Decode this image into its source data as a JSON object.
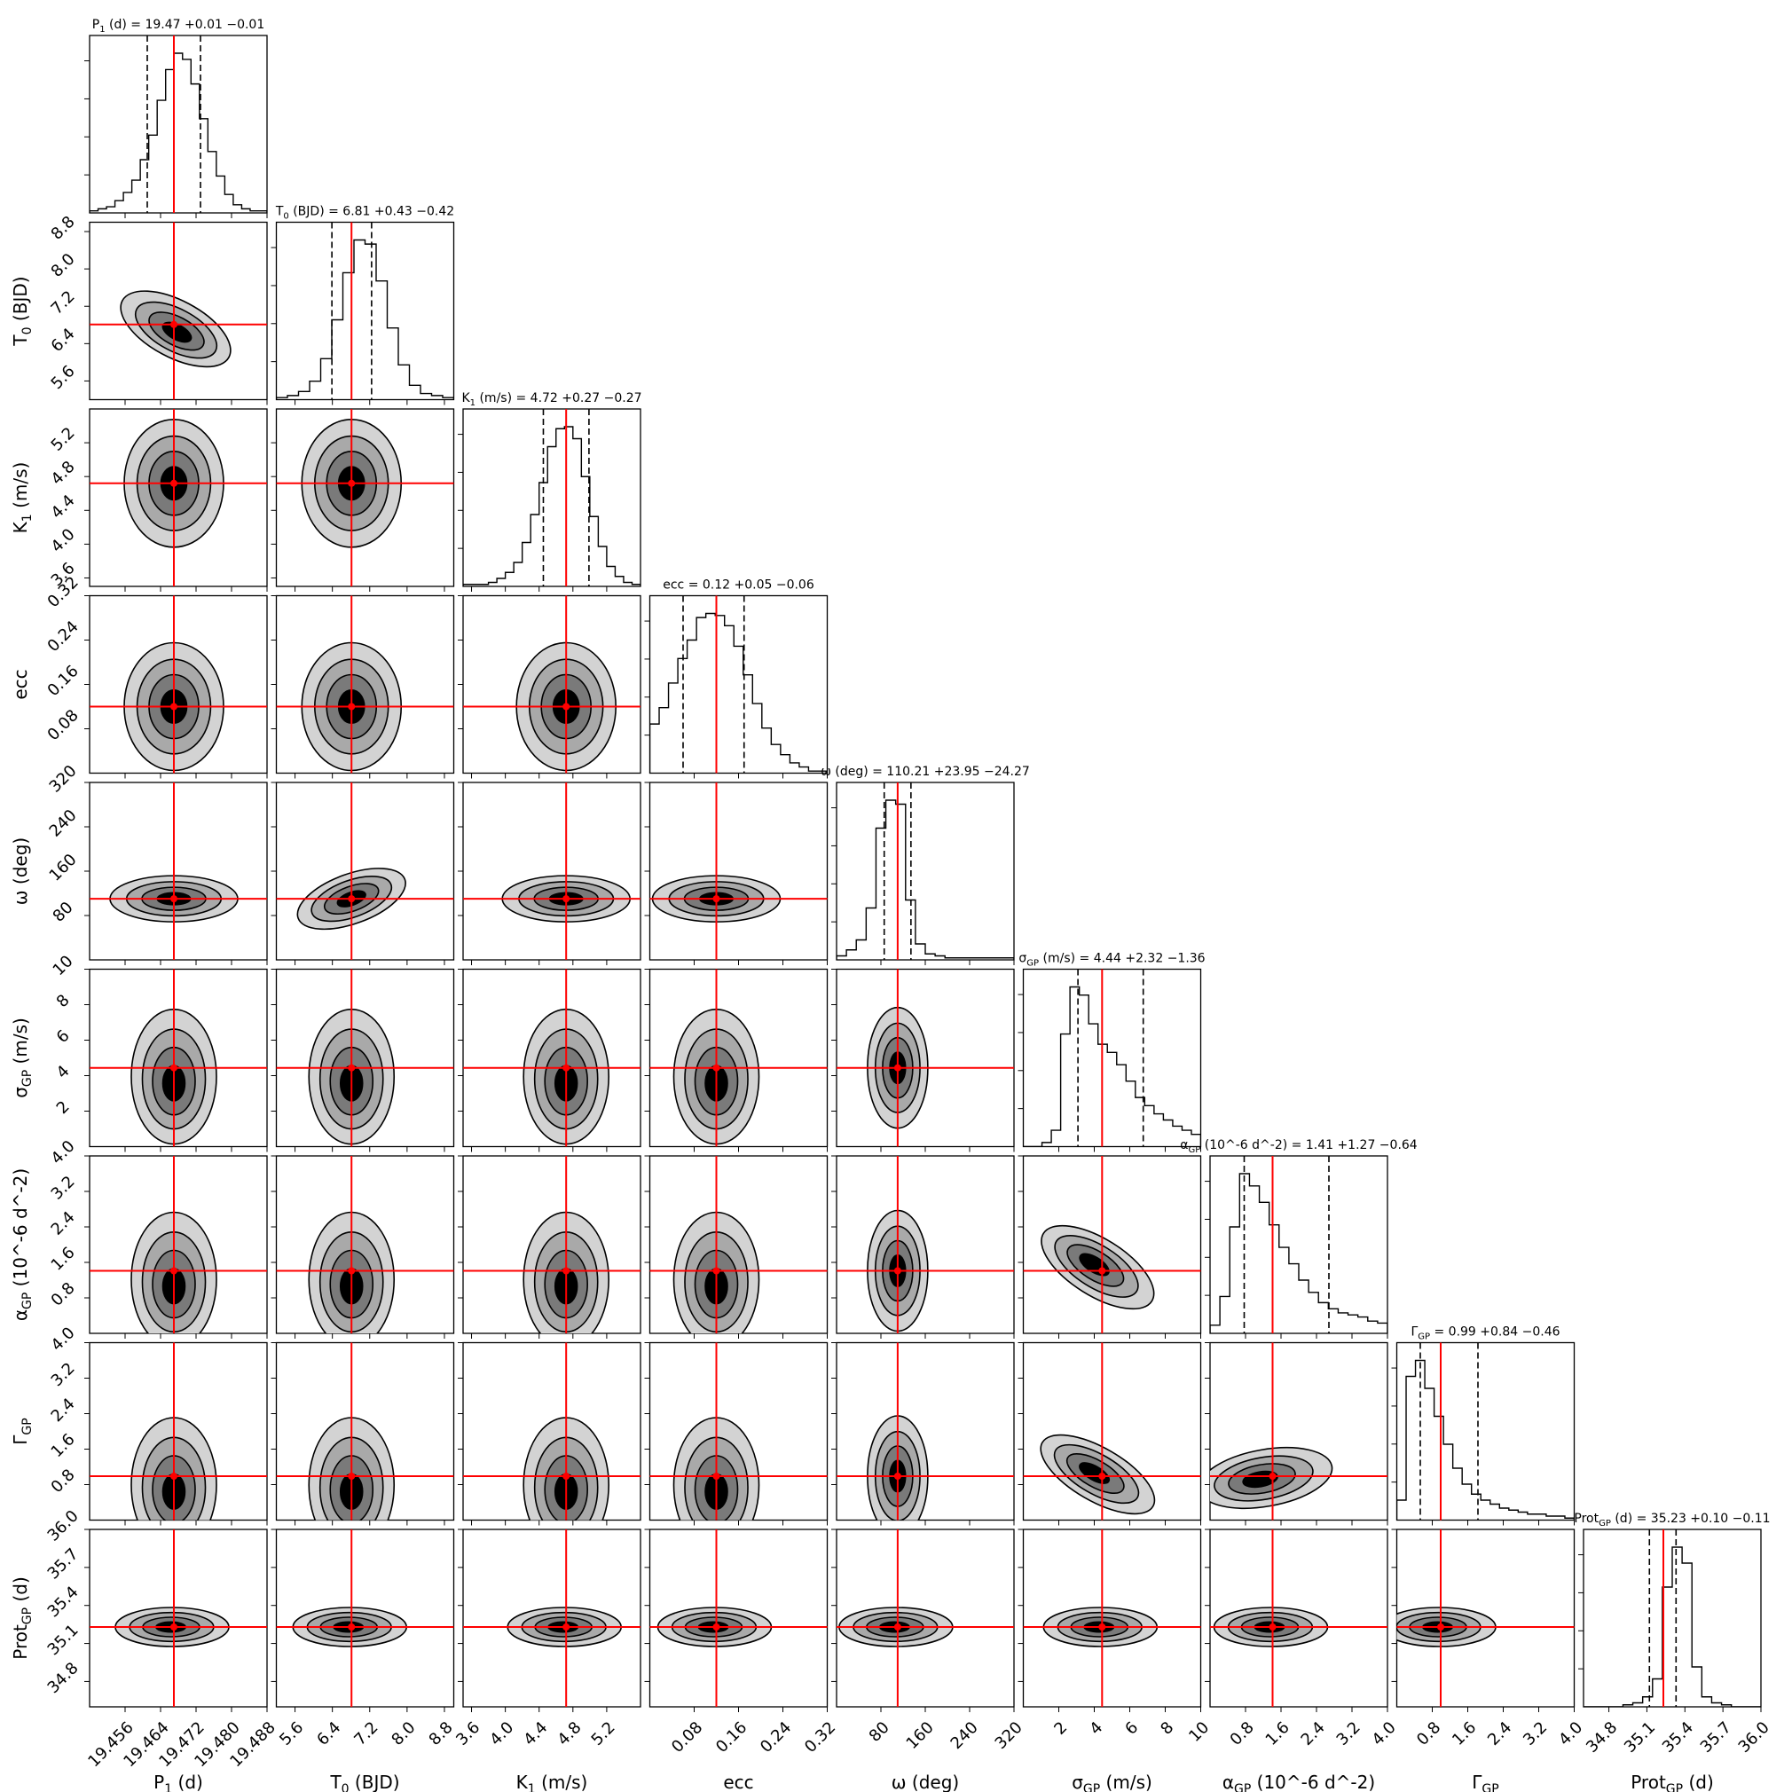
{
  "chart_data": {
    "type": "corner",
    "colors": {
      "truth_line": "#ff0000",
      "levels": [
        "#d3d3d3",
        "#a9a9a9",
        "#7a7a7a",
        "#000000"
      ],
      "outline": "#000000"
    },
    "parameters": [
      {
        "axis_label": "P_1 (d)",
        "title": "P_1 (d) = 19.47 +0.01 −0.01",
        "value": 19.467,
        "err_plus": 0.006,
        "err_minus": 0.006,
        "range": [
          19.448,
          19.488
        ],
        "ticks": [
          "19.456",
          "19.464",
          "19.472",
          "19.480",
          "19.488"
        ],
        "tick_values": [
          19.456,
          19.464,
          19.472,
          19.48,
          19.488
        ],
        "hist": [
          1,
          2,
          3,
          6,
          10,
          16,
          26,
          38,
          55,
          70,
          78,
          75,
          63,
          46,
          30,
          18,
          9,
          4,
          2,
          1,
          1
        ]
      },
      {
        "axis_label": "T_0 (BJD)",
        "title": "T_0 (BJD) = 6.81 +0.43 −0.42",
        "value": 6.81,
        "err_plus": 0.43,
        "err_minus": 0.42,
        "range": [
          5.2,
          9.0
        ],
        "ticks": [
          "5.6",
          "6.4",
          "7.2",
          "8.0",
          "8.8"
        ],
        "tick_values": [
          5.6,
          6.4,
          7.2,
          8.0,
          8.8
        ],
        "hist": [
          1,
          2,
          4,
          9,
          20,
          39,
          62,
          78,
          76,
          58,
          35,
          17,
          7,
          3,
          2,
          1
        ]
      },
      {
        "axis_label": "K_1 (m/s)",
        "title": "K_1 (m/s) = 4.72 +0.27 −0.27",
        "value": 4.72,
        "err_plus": 0.27,
        "err_minus": 0.27,
        "range": [
          3.5,
          5.6
        ],
        "ticks": [
          "3.6",
          "4.0",
          "4.4",
          "4.8",
          "5.2"
        ],
        "tick_values": [
          3.6,
          4.0,
          4.4,
          4.8,
          5.2
        ],
        "hist": [
          1,
          1,
          1,
          2,
          4,
          7,
          12,
          22,
          36,
          52,
          70,
          79,
          80,
          74,
          55,
          35,
          20,
          10,
          5,
          2,
          1
        ]
      },
      {
        "axis_label": "ecc",
        "title": "ecc = 0.12 +0.05 −0.06",
        "value": 0.12,
        "err_plus": 0.05,
        "err_minus": 0.06,
        "range": [
          0.0,
          0.32
        ],
        "ticks": [
          "0.08",
          "0.16",
          "0.24",
          "0.32"
        ],
        "tick_values": [
          0.08,
          0.16,
          0.24,
          0.32
        ],
        "hist": [
          24,
          32,
          44,
          56,
          65,
          76,
          78,
          77,
          72,
          62,
          48,
          34,
          22,
          14,
          9,
          5,
          3,
          1,
          1
        ]
      },
      {
        "axis_label": "ω (deg)",
        "title": "ω (deg) = 110.21 +23.95 −24.27",
        "value": 110.21,
        "err_plus": 23.95,
        "err_minus": 24.27,
        "range": [
          0,
          320
        ],
        "ticks": [
          "80",
          "160",
          "240",
          "320"
        ],
        "tick_values": [
          80,
          160,
          240,
          320
        ],
        "hist": [
          2,
          5,
          10,
          26,
          66,
          80,
          78,
          30,
          8,
          3,
          2,
          1,
          1,
          1,
          1,
          1,
          1,
          1
        ]
      },
      {
        "axis_label": "σ_GP (m/s)",
        "title": "σ_GP (m/s) = 4.44 +2.32 −1.36",
        "value": 4.44,
        "err_plus": 2.32,
        "err_minus": 1.36,
        "range": [
          0,
          10
        ],
        "ticks": [
          "2",
          "4",
          "6",
          "8",
          "10"
        ],
        "tick_values": [
          2,
          4,
          6,
          8,
          10
        ],
        "hist": [
          0,
          0,
          2,
          8,
          55,
          78,
          74,
          60,
          50,
          46,
          40,
          32,
          24,
          20,
          16,
          13,
          10,
          8,
          6
        ]
      },
      {
        "axis_label": "α_GP (10^-6 d^-2)",
        "title": "α_GP (10^-6 d^-2) = 1.41 +1.27 −0.64",
        "value": 1.41,
        "err_plus": 1.27,
        "err_minus": 0.64,
        "range": [
          0,
          4.0
        ],
        "ticks": [
          "0.8",
          "1.6",
          "2.4",
          "3.2",
          "4.0"
        ],
        "tick_values": [
          0.8,
          1.6,
          2.4,
          3.2,
          4.0
        ],
        "hist": [
          4,
          18,
          52,
          78,
          72,
          64,
          53,
          42,
          34,
          26,
          20,
          15,
          12,
          10,
          9,
          8,
          6,
          5
        ]
      },
      {
        "axis_label": "Γ_GP",
        "title": "Γ_GP = 0.99 +0.84 −0.46",
        "value": 0.99,
        "err_plus": 0.84,
        "err_minus": 0.46,
        "range": [
          0,
          4.0
        ],
        "ticks": [
          "0.8",
          "1.6",
          "2.4",
          "3.2",
          "4.0"
        ],
        "tick_values": [
          0.8,
          1.6,
          2.4,
          3.2,
          4.0
        ],
        "hist": [
          10,
          72,
          80,
          66,
          52,
          38,
          26,
          18,
          13,
          10,
          8,
          6,
          5,
          4,
          3,
          3,
          2,
          2,
          1
        ]
      },
      {
        "axis_label": "Prot_GP (d)",
        "title": "Prot_GP (d) = 35.23 +0.10 −0.11",
        "value": 35.23,
        "err_plus": 0.1,
        "err_minus": 0.11,
        "range": [
          34.6,
          36.0
        ],
        "ticks": [
          "34.8",
          "35.1",
          "35.4",
          "35.7",
          "36.0"
        ],
        "tick_values": [
          34.8,
          35.1,
          35.4,
          35.7,
          36.0
        ],
        "hist": [
          0,
          0,
          0,
          0,
          1,
          2,
          5,
          14,
          60,
          80,
          72,
          20,
          5,
          2,
          1,
          0,
          0,
          0
        ]
      }
    ]
  }
}
